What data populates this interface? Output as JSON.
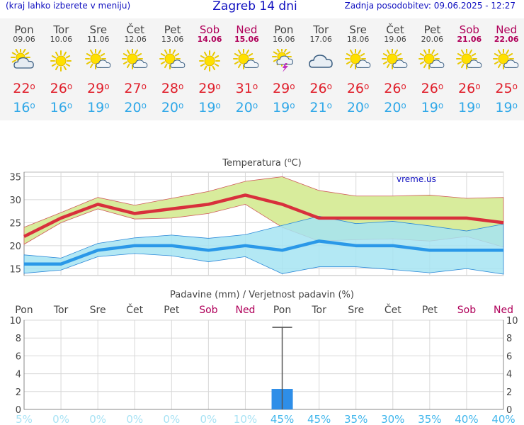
{
  "header": {
    "left_note": "(kraj lahko izberete v meniju)",
    "title": "Zagreb 14 dni",
    "updated": "Zadnja posodobitev: 09.06.2025 - 12:27"
  },
  "days": [
    {
      "name": "Pon",
      "date": "09.06",
      "weekend": false,
      "icon": "partly-cloudy-icon",
      "max": "22",
      "min": "16"
    },
    {
      "name": "Tor",
      "date": "10.06",
      "weekend": false,
      "icon": "sun-icon",
      "max": "26",
      "min": "16"
    },
    {
      "name": "Sre",
      "date": "11.06",
      "weekend": false,
      "icon": "sun-cloud-icon",
      "max": "29",
      "min": "19"
    },
    {
      "name": "Čet",
      "date": "12.06",
      "weekend": false,
      "icon": "sun-cloud-icon",
      "max": "27",
      "min": "20"
    },
    {
      "name": "Pet",
      "date": "13.06",
      "weekend": false,
      "icon": "sun-cloud-icon",
      "max": "28",
      "min": "20"
    },
    {
      "name": "Sob",
      "date": "14.06",
      "weekend": true,
      "icon": "sun-icon",
      "max": "29",
      "min": "19"
    },
    {
      "name": "Ned",
      "date": "15.06",
      "weekend": true,
      "icon": "sun-cloud-icon",
      "max": "31",
      "min": "20"
    },
    {
      "name": "Pon",
      "date": "16.06",
      "weekend": false,
      "icon": "thunderstorm-icon",
      "max": "29",
      "min": "19"
    },
    {
      "name": "Tor",
      "date": "17.06",
      "weekend": false,
      "icon": "cloud-icon",
      "max": "26",
      "min": "21"
    },
    {
      "name": "Sre",
      "date": "18.06",
      "weekend": false,
      "icon": "sun-cloud-icon",
      "max": "26",
      "min": "20"
    },
    {
      "name": "Čet",
      "date": "19.06",
      "weekend": false,
      "icon": "sun-cloud-icon",
      "max": "26",
      "min": "20"
    },
    {
      "name": "Pet",
      "date": "20.06",
      "weekend": false,
      "icon": "sun-cloud-icon",
      "max": "26",
      "min": "19"
    },
    {
      "name": "Sob",
      "date": "21.06",
      "weekend": true,
      "icon": "sun-cloud-icon",
      "max": "26",
      "min": "19"
    },
    {
      "name": "Ned",
      "date": "22.06",
      "weekend": true,
      "icon": "sun-cloud-icon",
      "max": "25",
      "min": "19"
    }
  ],
  "degree_symbol": "o",
  "colors": {
    "max": "#e0202c",
    "min": "#30a8e8",
    "max_band": "#d8ec9c",
    "min_band": "#a6e4f2",
    "overlap": "#88d096",
    "bar": "#2e8ee8",
    "weekend": "#b0005a"
  },
  "chart_data": [
    {
      "type": "line",
      "title": "Temperatura (",
      "title_unit": "C",
      "title_end": ")",
      "source": "vreme.us",
      "categories": [
        "Pon",
        "Tor",
        "Sre",
        "Čet",
        "Pet",
        "Sob",
        "Ned",
        "Pon",
        "Tor",
        "Sre",
        "Čet",
        "Pet",
        "Sob",
        "Ned"
      ],
      "ylim": [
        13.5,
        36
      ],
      "yticks": [
        15,
        20,
        25,
        30,
        35
      ],
      "series": [
        {
          "name": "max",
          "values": [
            22,
            26,
            29,
            27,
            28,
            29,
            31,
            29,
            26,
            26,
            26,
            26,
            26,
            25
          ]
        },
        {
          "name": "min",
          "values": [
            16,
            16,
            19,
            20,
            20,
            19,
            20,
            19,
            21,
            20,
            20,
            19,
            19,
            19
          ]
        }
      ],
      "max_band_upper": [
        24,
        27.2,
        30.5,
        28.8,
        30.3,
        31.8,
        34,
        35,
        32,
        30.8,
        30.8,
        31,
        30.3,
        30.5
      ],
      "max_band_lower": [
        20.3,
        25,
        28,
        25.8,
        26,
        27,
        29,
        24,
        21,
        21.3,
        21.5,
        21,
        22,
        19.7
      ],
      "min_band_upper": [
        18,
        17.3,
        20.5,
        21.7,
        22.3,
        21.6,
        22.4,
        24.4,
        26.4,
        24.8,
        25.3,
        24.3,
        23.2,
        24.7
      ],
      "min_band_lower": [
        14,
        14.7,
        17.6,
        18.3,
        17.8,
        16.5,
        17.6,
        13.9,
        15.4,
        15.4,
        14.8,
        14.1,
        15.0,
        13.8
      ],
      "grid": true
    },
    {
      "type": "bar",
      "title": "Padavine (mm) / Verjetnost padavin (%)",
      "categories": [
        "Pon",
        "Tor",
        "Sre",
        "Čet",
        "Pet",
        "Sob",
        "Ned",
        "Pon",
        "Tor",
        "Sre",
        "Čet",
        "Pet",
        "Sob",
        "Ned"
      ],
      "values": [
        0,
        0,
        0,
        0,
        0,
        0,
        0,
        2.3,
        0,
        0,
        0,
        0,
        0,
        0
      ],
      "range_max": [
        0,
        0,
        0,
        0,
        0,
        0,
        0,
        9.2,
        0,
        0,
        0,
        0,
        0,
        0
      ],
      "probability": [
        "5%",
        "0%",
        "0%",
        "0%",
        "0%",
        "0%",
        "10%",
        "45%",
        "45%",
        "35%",
        "30%",
        "35%",
        "40%",
        "40%"
      ],
      "ylim": [
        0,
        10
      ],
      "yticks": [
        0,
        2,
        4,
        6,
        8,
        10
      ],
      "grid": true
    }
  ]
}
